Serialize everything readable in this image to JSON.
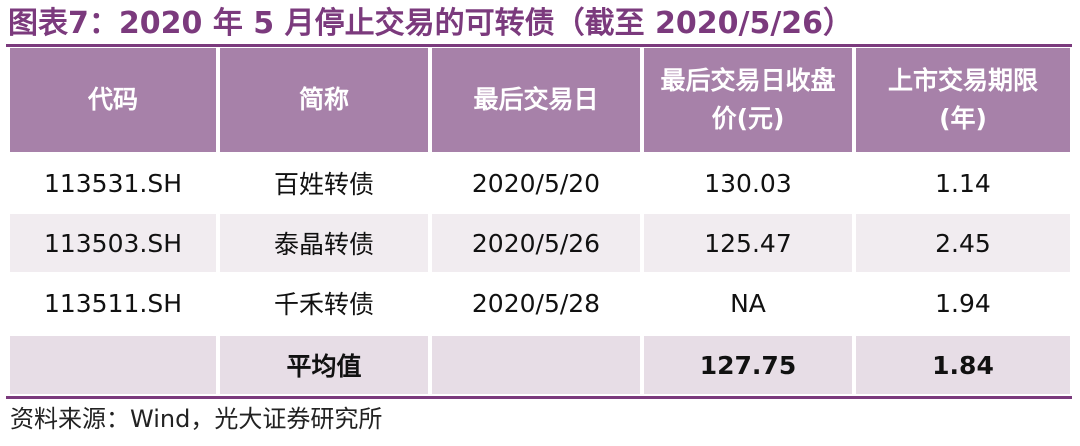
{
  "title": "图表7：2020 年 5 月停止交易的可转债（截至 2020/5/26）",
  "table": {
    "headers": [
      "代码",
      "简称",
      "最后交易日",
      "最后交易日收盘价(元)",
      "上市交易期限(年)"
    ],
    "rows": [
      [
        "113531.SH",
        "百姓转债",
        "2020/5/20",
        "130.03",
        "1.14"
      ],
      [
        "113503.SH",
        "泰晶转债",
        "2020/5/26",
        "125.47",
        "2.45"
      ],
      [
        "113511.SH",
        "千禾转债",
        "2020/5/28",
        "NA",
        "1.94"
      ]
    ],
    "summary": [
      "",
      "平均值",
      "",
      "127.75",
      "1.84"
    ]
  },
  "source": "资料来源：Wind，光大证券研究所",
  "colors": {
    "accent": "#7b3a7d",
    "header_bg": "#a781a9",
    "shaded_row": "#f1ecf0",
    "summary_row": "#e7dde6"
  }
}
